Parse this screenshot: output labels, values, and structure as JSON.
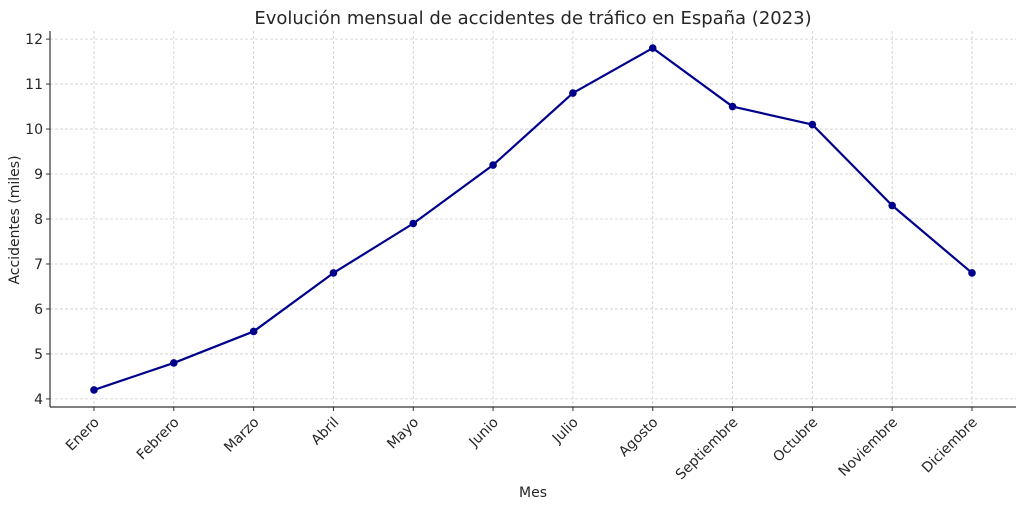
{
  "chart_data": {
    "type": "line",
    "title": "Evolución mensual de accidentes de tráfico en España (2023)",
    "xlabel": "Mes",
    "ylabel": "Accidentes (miles)",
    "categories": [
      "Enero",
      "Febrero",
      "Marzo",
      "Abril",
      "Mayo",
      "Junio",
      "Julio",
      "Agosto",
      "Septiembre",
      "Octubre",
      "Noviembre",
      "Diciembre"
    ],
    "series": [
      {
        "name": "Accidentes",
        "color": "#00008B",
        "values": [
          4.2,
          4.8,
          5.5,
          6.8,
          7.9,
          9.2,
          10.8,
          11.8,
          10.5,
          10.1,
          8.3,
          6.8
        ]
      }
    ],
    "yticks": [
      4,
      5,
      6,
      7,
      8,
      9,
      10,
      11,
      12
    ],
    "ylim": [
      3.82,
      12.18
    ],
    "grid": true,
    "legend": null
  }
}
